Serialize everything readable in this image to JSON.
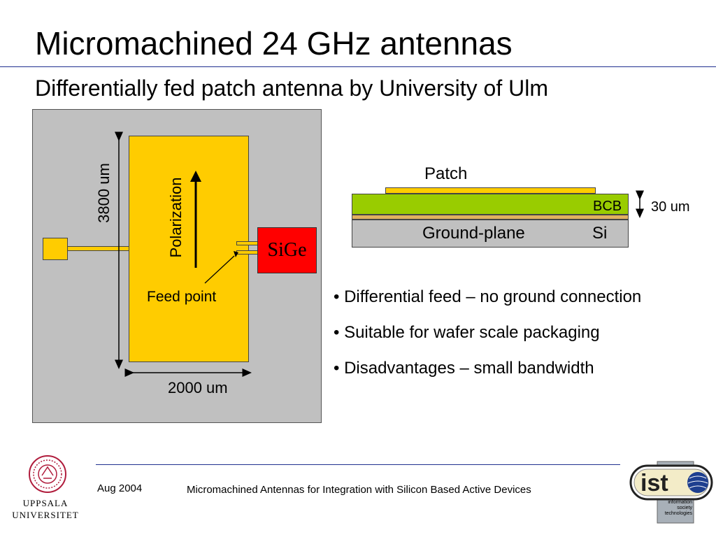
{
  "slide": {
    "title": "Micromachined 24 GHz antennas",
    "subtitle": "Differentially fed patch antenna by University of Ulm"
  },
  "top_view": {
    "height_label": "3800 um",
    "width_label": "2000 um",
    "polarization_label": "Polarization",
    "feed_point_label": "Feed point",
    "chip_label": "SiGe"
  },
  "cross_section": {
    "patch_label": "Patch",
    "bcb_label": "BCB",
    "ground_label": "Ground-plane",
    "si_label": "Si",
    "thickness_label": "30 um"
  },
  "bullets": [
    "• Differential feed – no ground connection",
    "• Suitable for wafer scale packaging",
    "• Disadvantages – small bandwidth"
  ],
  "footer": {
    "date": "Aug 2004",
    "title": "Micromachined Antennas for Integration with Silicon Based Active Devices",
    "university_line1": "UPPSALA",
    "university_line2": "UNIVERSITET",
    "ist_text": "ist",
    "ist_caption_line1": "information",
    "ist_caption_line2": "society",
    "ist_caption_line3": "technologies"
  },
  "colors": {
    "accent_rule": "#1f2f8f",
    "patch_gold": "#ffcc00",
    "bcb_green": "#99cc00",
    "chip_red": "#ff0000",
    "substrate_gray": "#c0c0c0"
  }
}
